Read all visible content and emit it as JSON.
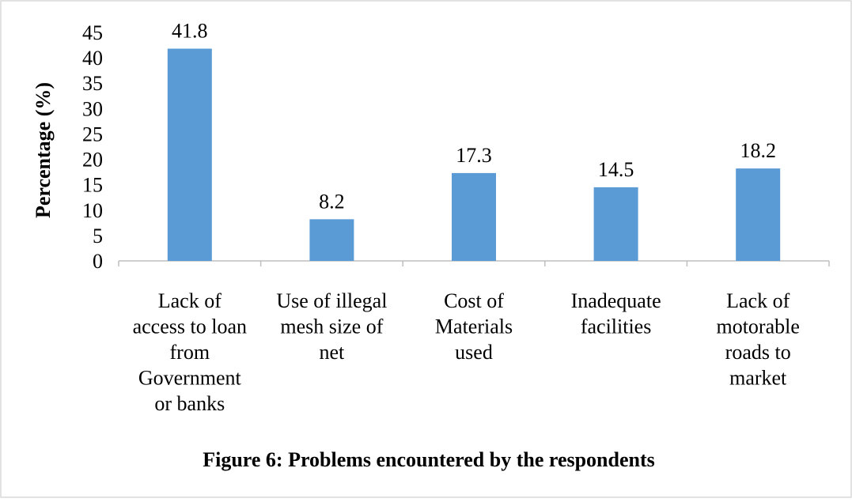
{
  "chart_data": {
    "type": "bar",
    "title": "",
    "xlabel": "",
    "ylabel": "Percentage (%)",
    "ylim": [
      0,
      45
    ],
    "yticks": [
      0,
      5,
      10,
      15,
      20,
      25,
      30,
      35,
      40,
      45
    ],
    "grid": false,
    "legend": "none",
    "bar_color": "#5b9bd5",
    "categories": [
      [
        "Lack of",
        "access to loan",
        "from",
        "Government",
        "or banks"
      ],
      [
        "Use of illegal",
        "mesh size of",
        "net"
      ],
      [
        "Cost of",
        "Materials",
        "used"
      ],
      [
        "Inadequate",
        "facilities"
      ],
      [
        "Lack of",
        "motorable",
        "roads to",
        "market"
      ]
    ],
    "values": [
      41.8,
      8.2,
      17.3,
      14.5,
      18.2
    ],
    "data_labels": [
      "41.8",
      "8.2",
      "17.3",
      "14.5",
      "18.2"
    ]
  },
  "caption": "Figure 6: Problems encountered by the respondents"
}
